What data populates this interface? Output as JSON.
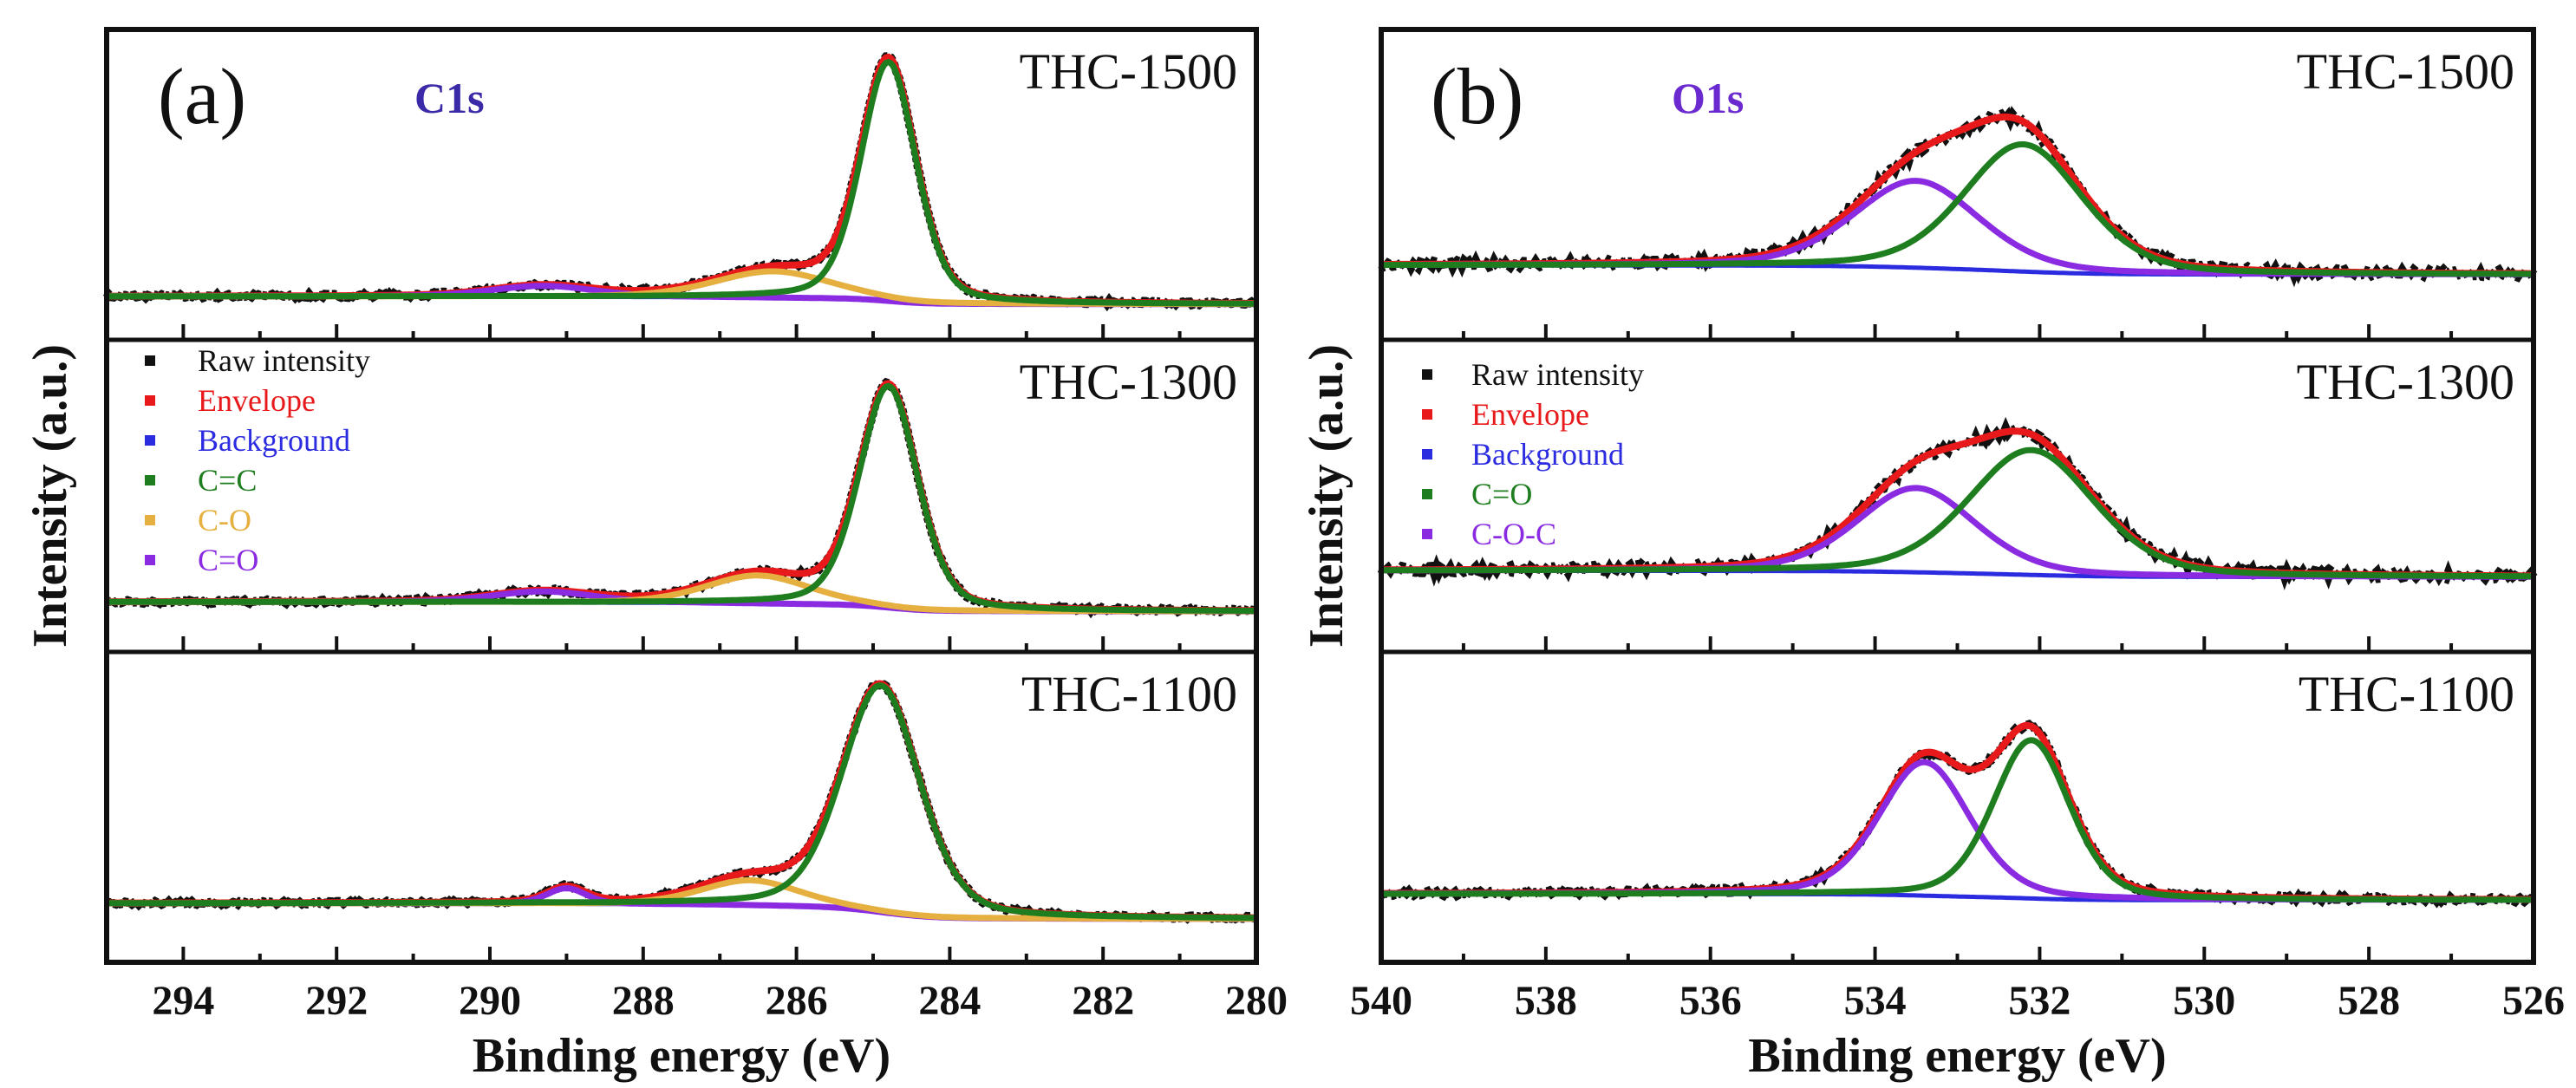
{
  "chart_data": [
    {
      "type": "line",
      "panel_letter": "(a)",
      "title": "C1s",
      "xlabel": "Binding energy (eV)",
      "ylabel": "Intensity (a.u.)",
      "xlim": [
        295,
        280
      ],
      "x_ticks": [
        294,
        292,
        290,
        288,
        286,
        284,
        282,
        280
      ],
      "x_minor_step": 1,
      "legend_position": "middle-panel top-left",
      "legend": [
        "Raw intensity",
        "Envelope",
        "Background",
        "C=C",
        "C-O",
        "C=O"
      ],
      "series_colors": {
        "Raw intensity": "#111111",
        "Envelope": "#e8191a",
        "Background": "#2b2be0",
        "C=C": "#1e7d1e",
        "C-O": "#e6b040",
        "C=O": "#8a2be2"
      },
      "title_color": "#3a2aa8",
      "panels": [
        {
          "label": "THC-1500",
          "background": [
            0.14,
            0.115
          ],
          "noise": 0.006,
          "components": [
            {
              "name": "C=C",
              "center": 284.8,
              "fwhm": 0.85,
              "height": 0.77
            },
            {
              "name": "C-O",
              "center": 286.3,
              "fwhm": 1.8,
              "height": 0.085
            },
            {
              "name": "C=O",
              "center": 289.3,
              "fwhm": 1.6,
              "height": 0.035
            }
          ]
        },
        {
          "label": "THC-1300",
          "background": [
            0.16,
            0.13
          ],
          "noise": 0.006,
          "components": [
            {
              "name": "C=C",
              "center": 284.8,
              "fwhm": 0.9,
              "height": 0.71
            },
            {
              "name": "C-O",
              "center": 286.5,
              "fwhm": 1.6,
              "height": 0.09
            },
            {
              "name": "C=O",
              "center": 289.3,
              "fwhm": 1.6,
              "height": 0.035
            }
          ]
        },
        {
          "label": "THC-1100",
          "background": [
            0.19,
            0.14
          ],
          "noise": 0.005,
          "components": [
            {
              "name": "C=C",
              "center": 284.9,
              "fwhm": 1.2,
              "height": 0.73
            },
            {
              "name": "C-O",
              "center": 286.6,
              "fwhm": 1.5,
              "height": 0.08
            },
            {
              "name": "C=O",
              "center": 289.0,
              "fwhm": 0.6,
              "height": 0.05
            }
          ]
        }
      ]
    },
    {
      "type": "line",
      "panel_letter": "(b)",
      "title": "O1s",
      "xlabel": "Binding energy (eV)",
      "ylabel": "Intensity (a.u.)",
      "xlim": [
        540,
        526
      ],
      "x_ticks": [
        540,
        538,
        536,
        534,
        532,
        530,
        528,
        526
      ],
      "x_minor_step": 1,
      "legend_position": "middle-panel top-left",
      "legend": [
        "Raw intensity",
        "Envelope",
        "Background",
        "C=O",
        "C-O-C"
      ],
      "series_colors": {
        "Raw intensity": "#111111",
        "Envelope": "#e8191a",
        "Background": "#2b2be0",
        "C=O": "#1e7d1e",
        "C-O-C": "#8a2be2"
      },
      "title_color": "#6a2ad0",
      "panels": [
        {
          "label": "THC-1500",
          "background": [
            0.24,
            0.21
          ],
          "noise": 0.012,
          "components": [
            {
              "name": "C=O",
              "center": 532.2,
              "fwhm": 1.7,
              "height": 0.41
            },
            {
              "name": "C-O-C",
              "center": 533.5,
              "fwhm": 1.8,
              "height": 0.28
            }
          ]
        },
        {
          "label": "THC-1300",
          "background": [
            0.26,
            0.24
          ],
          "noise": 0.012,
          "components": [
            {
              "name": "C=O",
              "center": 532.1,
              "fwhm": 1.8,
              "height": 0.4
            },
            {
              "name": "C-O-C",
              "center": 533.5,
              "fwhm": 1.7,
              "height": 0.27
            }
          ]
        },
        {
          "label": "THC-1100",
          "background": [
            0.22,
            0.2
          ],
          "noise": 0.008,
          "components": [
            {
              "name": "C=O",
              "center": 532.1,
              "fwhm": 1.1,
              "height": 0.51
            },
            {
              "name": "C-O-C",
              "center": 533.4,
              "fwhm": 1.3,
              "height": 0.43
            }
          ]
        }
      ]
    }
  ]
}
